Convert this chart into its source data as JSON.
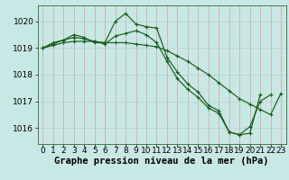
{
  "background_color": "#c8e8e5",
  "grid_color_v": "#d4a0a0",
  "grid_color_h": "#b8d0ce",
  "line_color": "#1a5c1a",
  "xlabel": "Graphe pression niveau de la mer (hPa)",
  "xlabel_fontsize": 7.5,
  "tick_fontsize": 6.5,
  "ylim": [
    1015.4,
    1020.6
  ],
  "yticks": [
    1016,
    1017,
    1018,
    1019,
    1020
  ],
  "xlim": [
    -0.5,
    23.5
  ],
  "xticks": [
    0,
    1,
    2,
    3,
    4,
    5,
    6,
    7,
    8,
    9,
    10,
    11,
    12,
    13,
    14,
    15,
    16,
    17,
    18,
    19,
    20,
    21,
    22,
    23
  ],
  "series1": [
    1019.0,
    1019.2,
    1019.3,
    1019.5,
    1019.4,
    1019.2,
    1019.2,
    1020.0,
    1020.3,
    1019.9,
    1019.8,
    1019.75,
    1018.65,
    1018.1,
    1017.65,
    1017.35,
    1016.85,
    1016.65,
    1015.85,
    1015.75,
    1016.05,
    1017.0,
    1017.25,
    null
  ],
  "series2": [
    1019.0,
    1019.15,
    1019.3,
    1019.4,
    1019.35,
    1019.25,
    1019.15,
    1019.45,
    1019.55,
    1019.65,
    1019.5,
    1019.2,
    1018.5,
    1017.85,
    1017.45,
    1017.15,
    1016.75,
    1016.55,
    1015.85,
    1015.75,
    1015.8,
    1017.25,
    null,
    null
  ],
  "series3": [
    1019.0,
    1019.1,
    1019.2,
    1019.25,
    1019.25,
    1019.25,
    1019.2,
    1019.2,
    1019.2,
    1019.15,
    1019.1,
    1019.05,
    1018.9,
    1018.7,
    1018.5,
    1018.25,
    1018.0,
    1017.7,
    1017.4,
    1017.1,
    1016.9,
    1016.7,
    1016.5,
    1017.3
  ]
}
